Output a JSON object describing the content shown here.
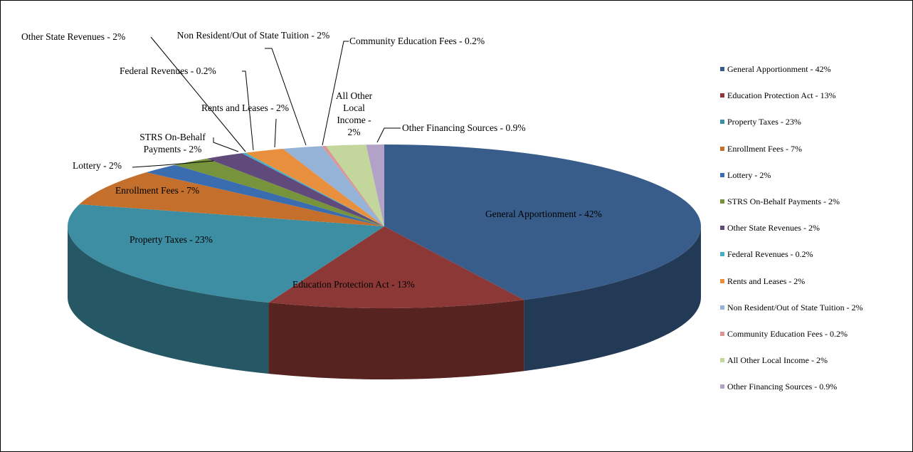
{
  "chart_data": {
    "type": "pie3d",
    "categories": [
      "General Apportionment - 42%",
      "Education Protection Act - 13%",
      "Property Taxes - 23%",
      "Enrollment Fees - 7%",
      "Lottery - 2%",
      "STRS On-Behalf Payments - 2%",
      "Other State Revenues - 2%",
      "Federal Revenues - 0.2%",
      "Rents and Leases - 2%",
      "Non Resident/Out of State Tuition - 2%",
      "Community Education Fees - 0.2%",
      "All Other Local Income - 2%",
      "Other Financing Sources - 0.9%"
    ],
    "values": [
      42,
      13,
      23,
      7,
      2,
      2,
      2,
      0.2,
      2,
      2,
      0.2,
      2,
      0.9
    ],
    "colors": [
      "#385d8a",
      "#8c3836",
      "#3d8da3",
      "#c46f2c",
      "#3a6db0",
      "#77933c",
      "#604a7b",
      "#4bacc6",
      "#e8903e",
      "#95b3d7",
      "#d99694",
      "#c3d69b",
      "#b3a2c7"
    ],
    "legend": "right"
  }
}
